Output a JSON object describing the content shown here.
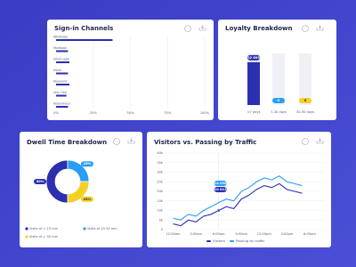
{
  "chart_data": [
    {
      "type": "hbar",
      "title": "Sign-in Channels",
      "categories": [
        "Whatsapp",
        "Facebook",
        "Email Light",
        "Email",
        "Password",
        "One Click",
        "Anonymous"
      ],
      "values": [
        38,
        8,
        9,
        8,
        9,
        7,
        8
      ],
      "color": "#2b2fb0",
      "xlim": [
        0,
        100
      ],
      "xticks": [
        {
          "value": 0,
          "label": "0%"
        },
        {
          "value": 25,
          "label": "25%"
        },
        {
          "value": 50,
          "label": "50%"
        },
        {
          "value": 75,
          "label": "75%"
        },
        {
          "value": 100,
          "label": "100%"
        }
      ],
      "grid": true
    },
    {
      "type": "bar",
      "title": "Loyalty Breakdown",
      "categories": [
        "<7 days",
        "7-30 days",
        "30-90 days"
      ],
      "values": [
        32893,
        0,
        0
      ],
      "value_labels": [
        "32 893",
        "0",
        "0"
      ],
      "colors": [
        "#2b2fb0",
        "#2a9df4",
        "#f2d024"
      ]
    },
    {
      "type": "pie",
      "title": "Dwell Time Breakdown",
      "categories": [
        "Visits of < 15 min",
        "Visits of 15-30 min",
        "Visits of > 30 min"
      ],
      "values": [
        50,
        25,
        25
      ],
      "value_labels": [
        "50%",
        "25%",
        "25%"
      ],
      "colors": [
        "#2b2fb0",
        "#2a9df4",
        "#f2d024"
      ]
    },
    {
      "type": "line",
      "title": "Visitors vs. Passing by Traffic",
      "x": [
        0,
        1,
        2,
        3,
        4,
        5,
        6,
        7,
        8,
        9,
        10,
        11,
        12,
        13,
        14,
        15,
        16,
        17
      ],
      "series": [
        {
          "name": "Visitors",
          "color": "#2b2fb0",
          "values": [
            3000,
            2000,
            5000,
            4000,
            7000,
            8000,
            10011,
            12000,
            11000,
            16000,
            18000,
            21000,
            23000,
            22000,
            24000,
            21000,
            20000,
            19000
          ]
        },
        {
          "name": "Passing by traffic",
          "color": "#2a9df4",
          "values": [
            6000,
            5000,
            8000,
            7000,
            10000,
            12000,
            14090,
            16000,
            15000,
            20000,
            22000,
            25000,
            27000,
            26000,
            28000,
            25000,
            24000,
            23000
          ]
        }
      ],
      "xlim": [
        -1,
        20
      ],
      "xticks": [
        {
          "value": 0,
          "label": "12:00am"
        },
        {
          "value": 3,
          "label": "3:00am"
        },
        {
          "value": 6,
          "label": "6:00am"
        },
        {
          "value": 9,
          "label": "9:00am"
        },
        {
          "value": 12,
          "label": "12:00pm"
        },
        {
          "value": 15,
          "label": "3:00pm"
        },
        {
          "value": 18,
          "label": "6:00pm"
        }
      ],
      "ylim": [
        0,
        40000
      ],
      "yticks": [
        0,
        {
          "value": 5000,
          "label": "5k"
        },
        {
          "value": 10000,
          "label": "10k"
        },
        {
          "value": 15000,
          "label": "15k"
        },
        {
          "value": 20000,
          "label": "20k"
        },
        {
          "value": 25000,
          "label": "25k"
        },
        {
          "value": 30000,
          "label": "30k"
        },
        {
          "value": 35000,
          "label": "35k"
        },
        {
          "value": 40000,
          "label": "40k"
        }
      ],
      "grid": true,
      "tooltip": {
        "x": 6,
        "labels": [
          "14 090",
          "10 011"
        ]
      }
    }
  ]
}
